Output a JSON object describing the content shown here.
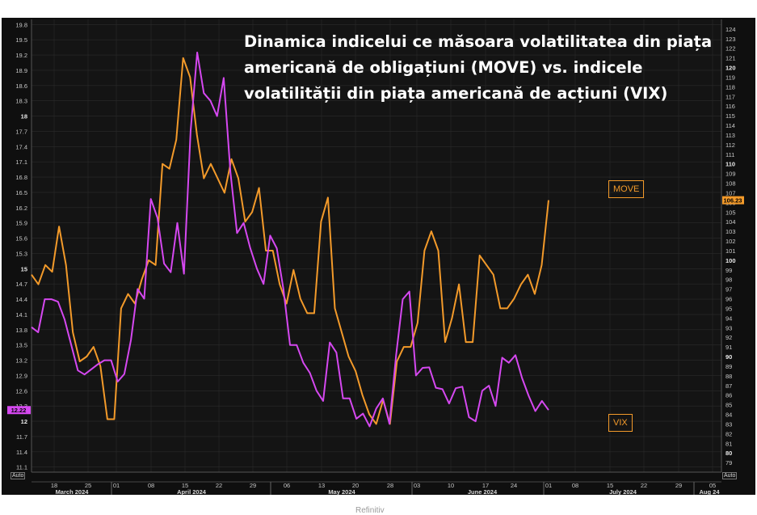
{
  "title": "Dinamica indicelui ce măsoara volatilitatea din piața americană de obligațiuni (MOVE) vs. indicele volatilității din piața americană de acțiuni (VIX)",
  "footer_text": "Refinitiv",
  "auto_left": "Auto",
  "auto_right": "Auto",
  "colors": {
    "move": "#f39a2a",
    "vix": "#d548f0",
    "background": "#141414",
    "grid": "#2a2a2a"
  },
  "chart_data": {
    "type": "line",
    "x_tick_labels": [
      "18",
      "25",
      "01",
      "08",
      "15",
      "22",
      "29",
      "06",
      "13",
      "20",
      "28",
      "03",
      "10",
      "17",
      "24",
      "01",
      "08",
      "15",
      "22",
      "29",
      "05"
    ],
    "month_labels": [
      "March 2024",
      "April 2024",
      "May 2024",
      "June 2024",
      "July 2024",
      "Aug 24"
    ],
    "series": [
      {
        "name": "MOVE",
        "axis": "right",
        "last_value_label": "106.23",
        "label": "MOVE",
        "values": [
          98.5,
          97.5,
          99.5,
          98.8,
          103.5,
          99.5,
          92.5,
          89.5,
          90,
          91,
          89,
          83.5,
          83.5,
          95,
          96.5,
          95.5,
          98,
          100,
          99.5,
          110,
          109.5,
          112.5,
          121,
          119,
          113,
          108.5,
          110,
          108.5,
          107,
          110.5,
          108.5,
          104,
          105,
          107.5,
          101,
          101,
          97.5,
          95.5,
          99,
          96,
          94.5,
          94.5,
          104,
          106.5,
          95,
          92.5,
          90,
          88.5,
          86,
          84,
          83,
          85.5,
          83,
          89.5,
          91,
          91,
          93.5,
          101,
          103,
          101,
          91.5,
          94,
          97.5,
          91.5,
          91.5,
          100.5,
          99.5,
          98.5,
          95,
          95,
          96,
          97.5,
          98.5,
          96.5,
          99.5,
          106.23
        ]
      },
      {
        "name": "VIX",
        "axis": "left",
        "last_value_label": "12.22",
        "label": "VIX",
        "values": [
          13.85,
          13.75,
          14.4,
          14.4,
          14.35,
          14.0,
          13.5,
          13.0,
          12.92,
          13.02,
          13.12,
          13.2,
          13.2,
          12.78,
          12.93,
          13.6,
          14.6,
          14.41,
          16.37,
          16.0,
          15.1,
          14.93,
          15.9,
          14.9,
          17.7,
          19.25,
          18.45,
          18.3,
          18.0,
          18.75,
          16.9,
          15.7,
          15.9,
          15.4,
          15.0,
          14.7,
          15.65,
          15.4,
          14.6,
          13.5,
          13.5,
          13.15,
          12.95,
          12.6,
          12.4,
          13.55,
          13.35,
          12.45,
          12.45,
          12.05,
          12.15,
          11.9,
          12.25,
          12.45,
          11.95,
          13.3,
          14.4,
          14.55,
          12.9,
          13.05,
          13.06,
          12.66,
          12.63,
          12.35,
          12.65,
          12.68,
          12.08,
          12.0,
          12.6,
          12.7,
          12.3,
          13.25,
          13.15,
          13.3,
          12.85,
          12.5,
          12.2,
          12.4,
          12.22
        ]
      }
    ],
    "left_axis": {
      "ylim": [
        11.0,
        19.9
      ],
      "ticks": [
        "11.1",
        "11.4",
        "11.7",
        "12",
        "12.3",
        "12.6",
        "12.9",
        "13.2",
        "13.5",
        "13.8",
        "14.1",
        "14.4",
        "14.7",
        "15",
        "15.3",
        "15.6",
        "15.9",
        "16.2",
        "16.5",
        "16.8",
        "17.1",
        "17.4",
        "17.7",
        "18",
        "18.3",
        "18.6",
        "18.9",
        "19.2",
        "19.5",
        "19.8"
      ]
    },
    "right_axis": {
      "ylim": [
        78,
        125
      ],
      "ticks": [
        "79",
        "80",
        "81",
        "82",
        "83",
        "84",
        "85",
        "86",
        "87",
        "88",
        "89",
        "90",
        "91",
        "92",
        "93",
        "94",
        "95",
        "96",
        "97",
        "98",
        "99",
        "100",
        "101",
        "102",
        "103",
        "104",
        "105",
        "106",
        "107",
        "108",
        "109",
        "110",
        "111",
        "112",
        "113",
        "114",
        "115",
        "116",
        "117",
        "118",
        "119",
        "120",
        "121",
        "122",
        "123",
        "124"
      ]
    },
    "grid": true
  }
}
